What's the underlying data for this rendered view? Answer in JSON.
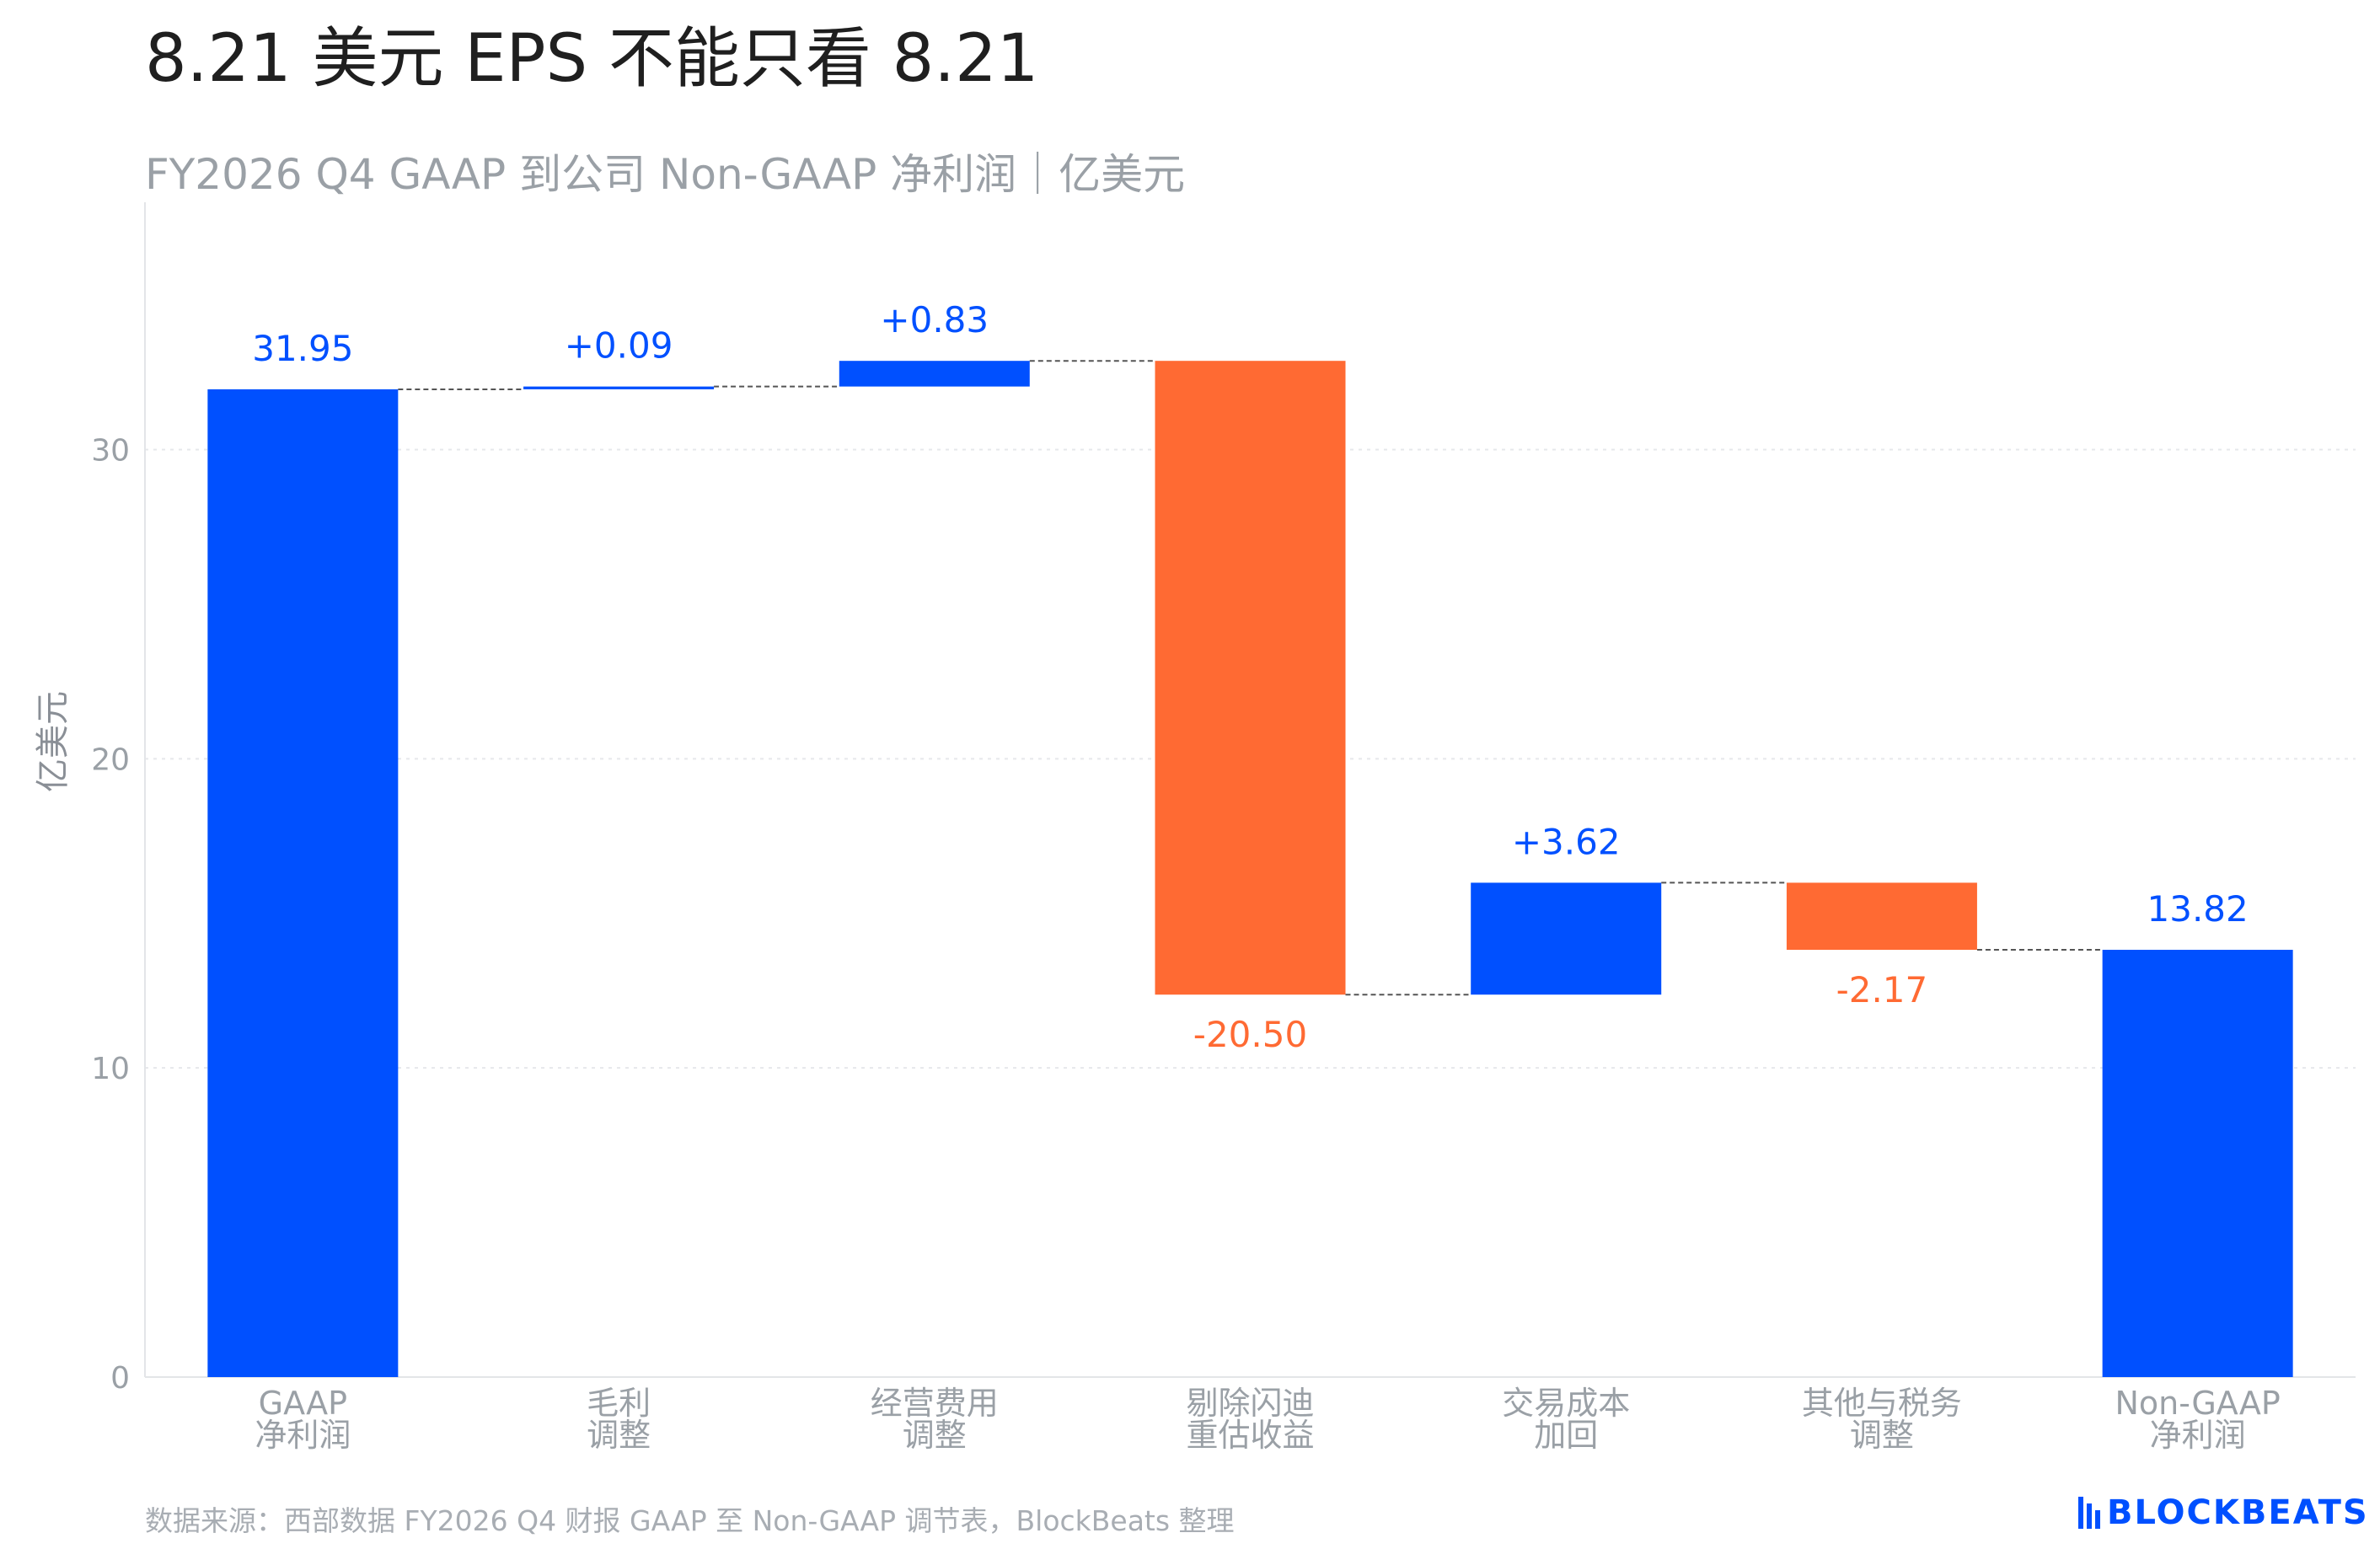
{
  "title": "8.21 美元 EPS 不能只看 8.21",
  "subtitle": "FY2026 Q4 GAAP 到公司 Non-GAAP 净利润｜亿美元",
  "source": "数据来源：西部数据 FY2026 Q4 财报 GAAP 至 Non-GAAP 调节表，BlockBeats 整理",
  "logo": {
    "text": "BLOCKBEATS"
  },
  "colors": {
    "positive": "#0050ff",
    "negative": "#ff6a33",
    "axis_text": "#9aa0a6",
    "grid": "#e6e8eb",
    "connector": "#555555"
  },
  "chart_data": {
    "type": "waterfall",
    "ylabel": "亿美元",
    "ylim": [
      0,
      38
    ],
    "yticks": [
      0,
      10,
      20,
      30
    ],
    "grid": true,
    "categories": [
      [
        "GAAP",
        "净利润"
      ],
      [
        "毛利",
        "调整"
      ],
      [
        "经营费用",
        "调整"
      ],
      [
        "剔除闪迪",
        "重估收益"
      ],
      [
        "交易成本",
        "加回"
      ],
      [
        "其他与税务",
        "调整"
      ],
      [
        "Non-GAAP",
        "净利润"
      ]
    ],
    "steps": [
      {
        "kind": "total",
        "value": 31.95,
        "label": "31.95"
      },
      {
        "kind": "delta",
        "value": 0.09,
        "label": "+0.09"
      },
      {
        "kind": "delta",
        "value": 0.83,
        "label": "+0.83"
      },
      {
        "kind": "delta",
        "value": -20.5,
        "label": "-20.50"
      },
      {
        "kind": "delta",
        "value": 3.62,
        "label": "+3.62"
      },
      {
        "kind": "delta",
        "value": -2.17,
        "label": "-2.17"
      },
      {
        "kind": "total",
        "value": 13.82,
        "label": "13.82"
      }
    ]
  }
}
